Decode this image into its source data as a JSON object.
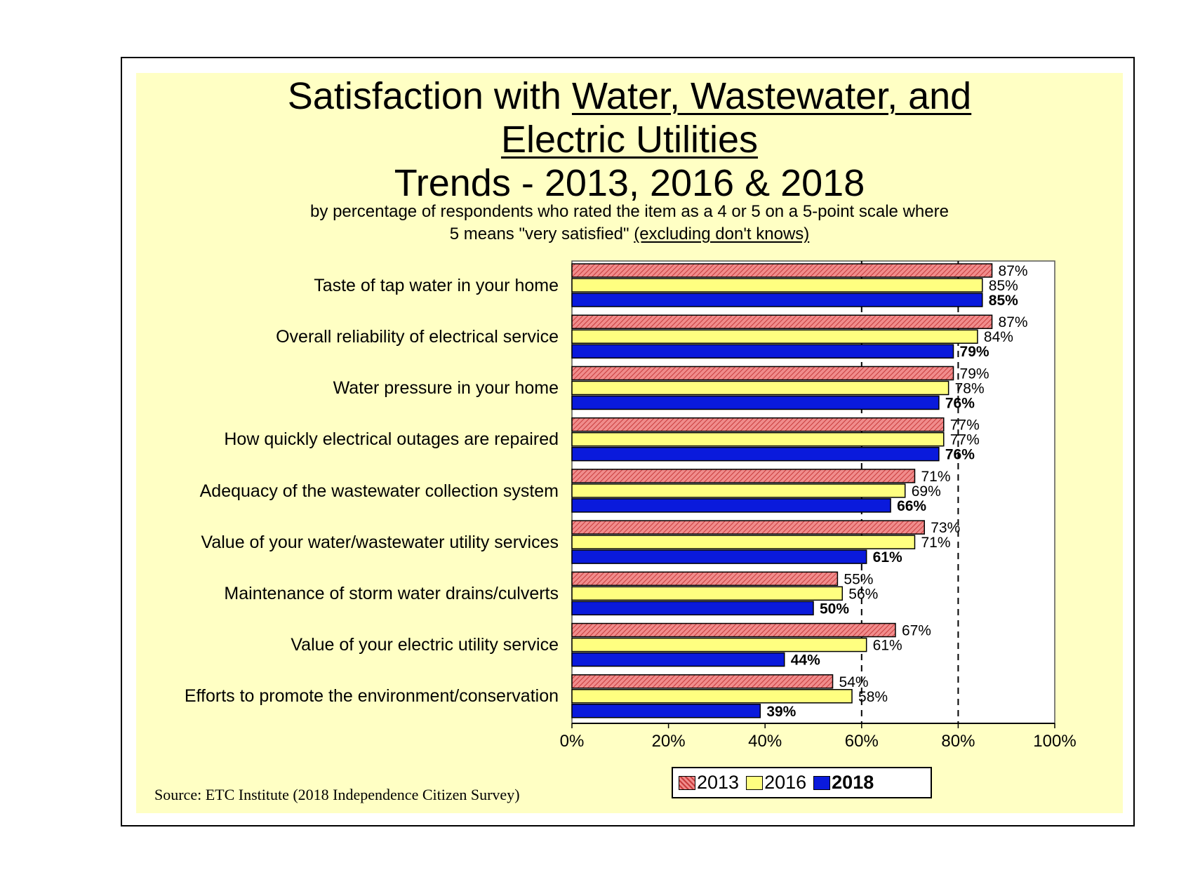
{
  "title": {
    "line1_plain": "Satisfaction with ",
    "line1_underlined": "Water, Wastewater, and",
    "line2_underlined": "Electric Utilities",
    "line3": "Trends - 2013, 2016 & 2018"
  },
  "subtitle": {
    "line1": "by percentage of respondents who rated the item as a 4 or 5 on a 5-point scale where",
    "line2_plain": "5 means \"very satisfied\" ",
    "line2_underlined": "(excluding don't knows)"
  },
  "source": "Source:  ETC Institute (2018 Independence Citizen Survey)",
  "colors": {
    "panel": "#ffffc4",
    "s2013": "#f08c8c",
    "s2016": "#ffff80",
    "s2018": "#0a1adc"
  },
  "chart_data": {
    "type": "bar",
    "orientation": "horizontal",
    "categories": [
      "Taste of tap water in your home",
      "Overall reliability of electrical service",
      "Water pressure in your home",
      "How quickly electrical outages are repaired",
      "Adequacy of the wastewater collection system",
      "Value of your water/wastewater utility services",
      "Maintenance of storm water drains/culverts",
      "Value of your electric utility service",
      "Efforts to promote the environment/conservation"
    ],
    "series": [
      {
        "name": "2013",
        "values": [
          87,
          87,
          79,
          77,
          71,
          73,
          55,
          67,
          54
        ]
      },
      {
        "name": "2016",
        "values": [
          85,
          84,
          78,
          77,
          69,
          71,
          56,
          61,
          58
        ]
      },
      {
        "name": "2018",
        "values": [
          85,
          79,
          76,
          76,
          66,
          61,
          50,
          44,
          39
        ]
      }
    ],
    "value_suffix": "%",
    "xlim": [
      0,
      100
    ],
    "x_ticks": [
      "0%",
      "20%",
      "40%",
      "60%",
      "80%",
      "100%"
    ],
    "reference_lines": [
      60,
      80
    ],
    "legend": [
      "2013",
      "2016",
      "2018"
    ],
    "legend_position": "bottom"
  }
}
